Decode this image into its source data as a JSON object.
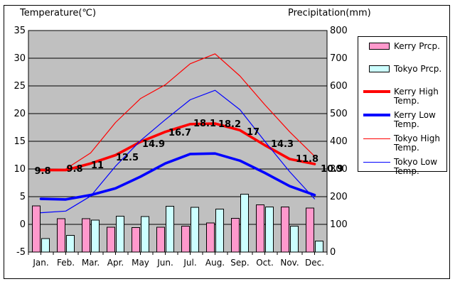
{
  "titles": {
    "left": "Temperature(℃)",
    "right": "Precipitation(mm)"
  },
  "colors": {
    "plot_bg": "#c0c0c0",
    "kerry_prcp": "#ff99cc",
    "tokyo_prcp": "#ccffff",
    "kerry_high": "#ff0000",
    "kerry_low": "#0000ff",
    "tokyo_high": "#ff0000",
    "tokyo_low": "#0000ff",
    "grid": "#000000",
    "text": "#000000"
  },
  "axes": {
    "temp_ticks": [
      "35",
      "30",
      "25",
      "20",
      "15",
      "10",
      "5",
      "0",
      "-5"
    ],
    "precip_ticks": [
      "800",
      "700",
      "600",
      "500",
      "400",
      "300",
      "200",
      "100",
      "0"
    ],
    "months": [
      "Jan.",
      "Feb.",
      "Mar.",
      "Apr.",
      "May",
      "Jun.",
      "Jul.",
      "Aug.",
      "Sep.",
      "Oct.",
      "Nov.",
      "Dec."
    ]
  },
  "chart_data": {
    "type": "combo bar+line climate chart",
    "categories": [
      "Jan.",
      "Feb.",
      "Mar.",
      "Apr.",
      "May",
      "Jun.",
      "Jul.",
      "Aug.",
      "Sep.",
      "Oct.",
      "Nov.",
      "Dec."
    ],
    "title_left_axis": "Temperature(℃)",
    "title_right_axis": "Precipitation(mm)",
    "ylim_temp": [
      -5,
      35
    ],
    "ylim_precip": [
      0,
      800
    ],
    "temp_tick_step": 5,
    "precip_tick_step": 100,
    "grid": true,
    "legend_position": "right",
    "series": [
      {
        "name": "Kerry Prcp.",
        "type": "bar",
        "axis": "precip",
        "color": "#ff99cc",
        "values": [
          167,
          121,
          120,
          90,
          88,
          90,
          94,
          105,
          122,
          171,
          163,
          159
        ]
      },
      {
        "name": "Tokyo Prcp.",
        "type": "bar",
        "axis": "precip",
        "color": "#ccffff",
        "values": [
          49,
          60,
          115,
          130,
          128,
          165,
          162,
          155,
          209,
          163,
          93,
          40
        ]
      },
      {
        "name": "Kerry High Temp.",
        "type": "line",
        "axis": "temp",
        "color": "#ff0000",
        "thickness": "thick",
        "values": [
          9.8,
          9.8,
          11,
          12.5,
          14.9,
          16.7,
          18.1,
          18.2,
          17,
          14.3,
          11.8,
          10.9
        ],
        "point_labels": [
          "9.8",
          "9.8",
          "11",
          "12.5",
          "14.9",
          "16.7",
          "18.1",
          "18.2",
          "17",
          "14.3",
          "11.8",
          "10.9"
        ]
      },
      {
        "name": "Kerry Low Temp.",
        "type": "line",
        "axis": "temp",
        "color": "#0000ff",
        "thickness": "thick",
        "values": [
          4.6,
          4.5,
          5.3,
          6.5,
          8.6,
          11.0,
          12.7,
          12.8,
          11.5,
          9.3,
          6.9,
          5.3
        ]
      },
      {
        "name": "Tokyo High Temp.",
        "type": "line",
        "axis": "temp",
        "color": "#ff0000",
        "thickness": "thin",
        "values": [
          9.9,
          10.0,
          12.9,
          18.4,
          22.7,
          25.2,
          29.0,
          30.8,
          26.8,
          21.6,
          16.7,
          12.3
        ]
      },
      {
        "name": "Tokyo Low Temp.",
        "type": "line",
        "axis": "temp",
        "color": "#0000ff",
        "thickness": "thin",
        "values": [
          2.1,
          2.4,
          5.1,
          10.5,
          15.1,
          18.9,
          22.5,
          24.2,
          20.7,
          15.0,
          9.5,
          4.6
        ]
      }
    ]
  },
  "legend": {
    "items": [
      {
        "line1": "Kerry Prcp.",
        "line2": "",
        "swatch": "bar",
        "color": "#ff99cc"
      },
      {
        "line1": "Tokyo Prcp.",
        "line2": "",
        "swatch": "bar",
        "color": "#ccffff"
      },
      {
        "line1": "Kerry High",
        "line2": "Temp.",
        "swatch": "line-thick",
        "color": "#ff0000"
      },
      {
        "line1": "Kerry Low",
        "line2": "Temp.",
        "swatch": "line-thick",
        "color": "#0000ff"
      },
      {
        "line1": "Tokyo High",
        "line2": "Temp.",
        "swatch": "line-thin",
        "color": "#ff0000"
      },
      {
        "line1": "Tokyo Low",
        "line2": "Temp.",
        "swatch": "line-thin",
        "color": "#0000ff"
      }
    ]
  }
}
